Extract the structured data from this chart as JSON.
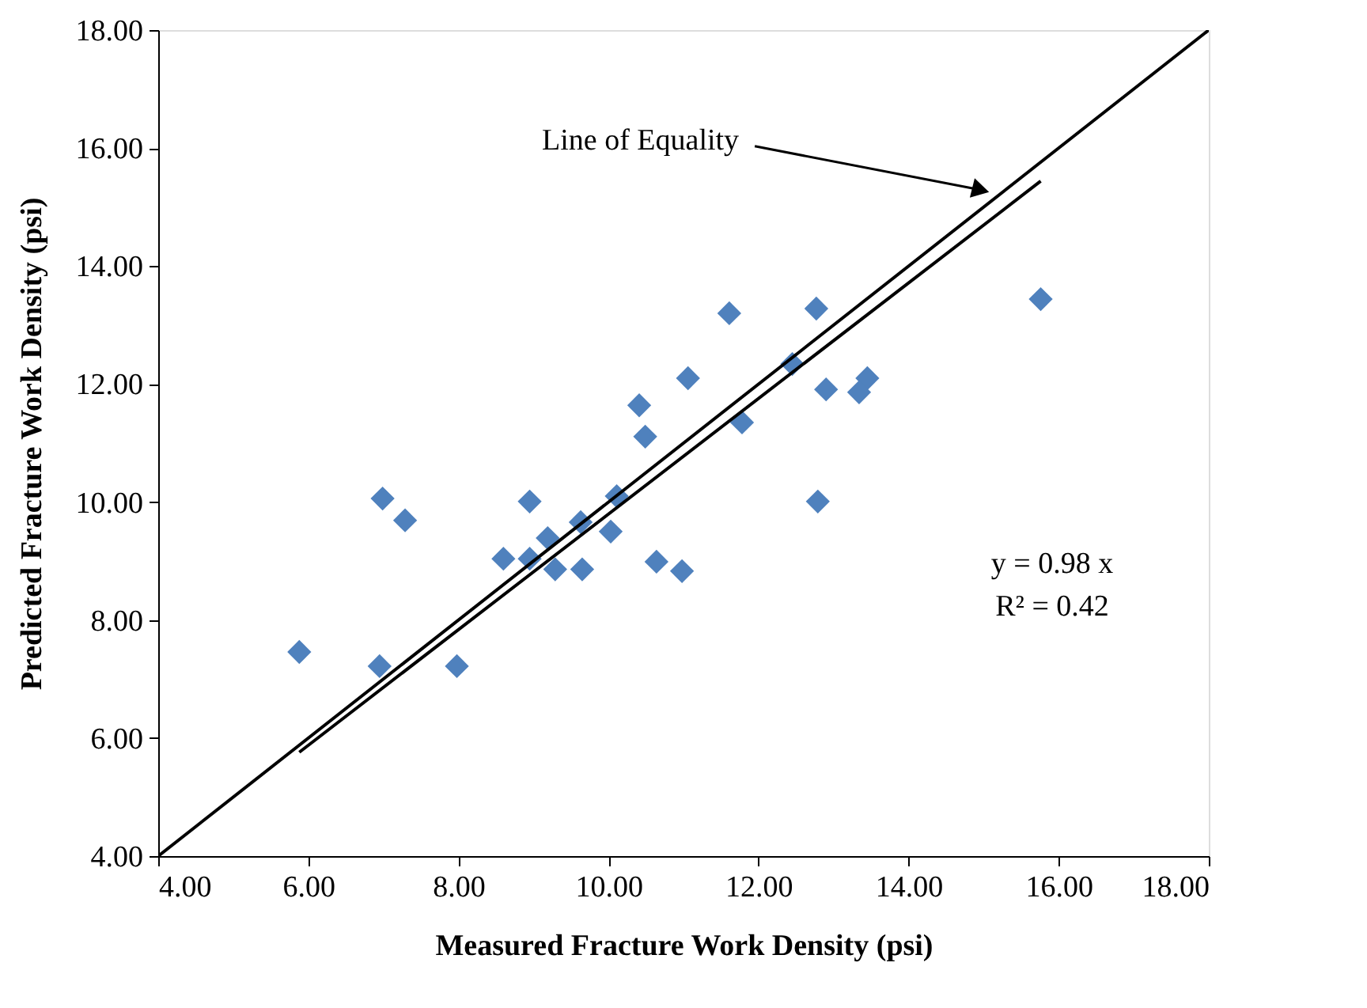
{
  "chart_data": {
    "type": "scatter",
    "xlabel": "Measured Fracture Work Density (psi)",
    "ylabel": "Predicted Fracture Work Density (psi)",
    "xlim": [
      4,
      18
    ],
    "ylim": [
      4,
      18
    ],
    "xticks": [
      {
        "value": 4,
        "label": "4.00"
      },
      {
        "value": 6,
        "label": "6.00"
      },
      {
        "value": 8,
        "label": "8.00"
      },
      {
        "value": 10,
        "label": "10.00"
      },
      {
        "value": 12,
        "label": "12.00"
      },
      {
        "value": 14,
        "label": "14.00"
      },
      {
        "value": 16,
        "label": "16.00"
      },
      {
        "value": 18,
        "label": "18.00"
      }
    ],
    "yticks": [
      {
        "value": 4,
        "label": "4.00"
      },
      {
        "value": 6,
        "label": "6.00"
      },
      {
        "value": 8,
        "label": "8.00"
      },
      {
        "value": 10,
        "label": "10.00"
      },
      {
        "value": 12,
        "label": "12.00"
      },
      {
        "value": 14,
        "label": "14.00"
      },
      {
        "value": 16,
        "label": "16.00"
      },
      {
        "value": 18,
        "label": "18.00"
      }
    ],
    "grid": false,
    "legend": false,
    "series": [
      {
        "color": "#4f81bd",
        "marker": "diamond",
        "x": [
          5.88,
          6.95,
          7.98,
          6.99,
          7.29,
          8.6,
          8.95,
          8.95,
          9.19,
          9.29,
          9.65,
          9.63,
          10.03,
          10.11,
          10.64,
          10.98,
          10.41,
          10.49,
          11.06,
          11.61,
          11.78,
          12.45,
          12.77,
          12.9,
          13.45,
          13.34,
          12.79,
          15.76
        ],
        "values": [
          7.46,
          7.22,
          7.22,
          10.06,
          9.69,
          9.04,
          9.04,
          10.01,
          9.39,
          8.86,
          8.86,
          9.66,
          9.5,
          10.1,
          8.99,
          8.83,
          11.64,
          11.11,
          12.1,
          13.2,
          11.35,
          12.34,
          13.28,
          11.91,
          12.1,
          11.86,
          10.01,
          13.44
        ]
      },
      {
        "type": "line",
        "color": "#000000",
        "line_style": "solid",
        "marker": "none",
        "x": [
          4,
          18
        ],
        "values": [
          4,
          18
        ]
      },
      {
        "type": "line",
        "color": "#000000",
        "line_style": "solid",
        "marker": "none",
        "x": [
          5.88,
          15.76
        ],
        "values": [
          5.76,
          15.44
        ]
      }
    ],
    "annotations": [
      {
        "text": "Line of Equality",
        "x": 14.96,
        "y": 15.29
      },
      "y = 0.98 x",
      "R² = 0.42"
    ]
  }
}
